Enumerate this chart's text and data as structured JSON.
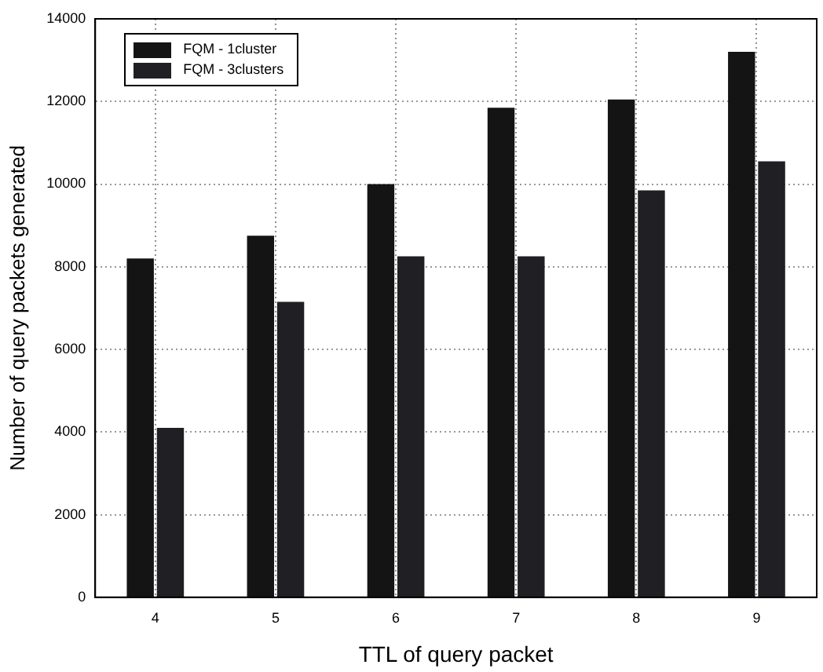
{
  "chart_data": {
    "type": "bar",
    "xlabel": "TTL of query packet",
    "ylabel": "Number of query packets generated",
    "categories": [
      "4",
      "5",
      "6",
      "7",
      "8",
      "9"
    ],
    "series": [
      {
        "name": "FQM - 1cluster",
        "color": "#141414",
        "values": [
          8200,
          8750,
          10000,
          11850,
          12050,
          13200
        ]
      },
      {
        "name": "FQM - 3clusters",
        "color": "#202024",
        "values": [
          4100,
          7150,
          8250,
          8250,
          9850,
          10550
        ]
      }
    ],
    "ylim": [
      0,
      14000
    ],
    "yticks": [
      0,
      2000,
      4000,
      6000,
      8000,
      10000,
      12000,
      14000
    ],
    "grid": true,
    "legend": "top left"
  }
}
